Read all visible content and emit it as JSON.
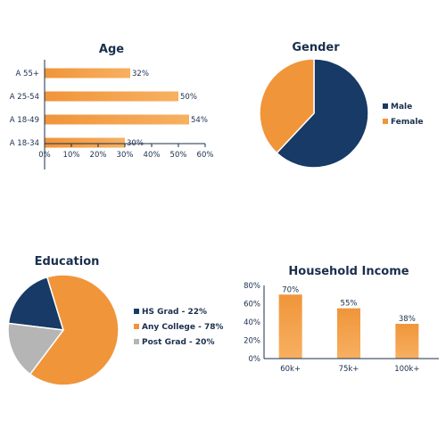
{
  "colors": {
    "orange": "#f0953a",
    "orange_light": "#f7b061",
    "navy": "#173a66",
    "gray": "#b5b5b5",
    "text": "#1a2f4d"
  },
  "chart_data": [
    {
      "id": "age",
      "type": "bar",
      "orientation": "horizontal",
      "title": "Age",
      "categories": [
        "A 55+",
        "A 25-54",
        "A 18-49",
        "A 18-34"
      ],
      "values": [
        32,
        50,
        54,
        30
      ],
      "value_labels": [
        "32%",
        "50%",
        "54%",
        "30%"
      ],
      "xlim": [
        0,
        60
      ],
      "ticks": [
        "0%",
        "10%",
        "20%",
        "30%",
        "40%",
        "50%",
        "60%"
      ],
      "grid": false
    },
    {
      "id": "gender",
      "type": "pie",
      "title": "Gender",
      "labels": [
        "Male",
        "Female"
      ],
      "values": [
        62,
        38
      ],
      "legend": "right"
    },
    {
      "id": "education",
      "type": "pie",
      "title": "Education",
      "labels": [
        "HS Grad - 22%",
        "Any College - 78%",
        "Post Grad - 20%"
      ],
      "values": [
        22,
        78,
        20
      ],
      "legend": "right"
    },
    {
      "id": "income",
      "type": "bar",
      "orientation": "vertical",
      "title": "Household Income",
      "categories": [
        "60k+",
        "75k+",
        "100k+"
      ],
      "values": [
        70,
        55,
        38
      ],
      "value_labels": [
        "70%",
        "55%",
        "38%"
      ],
      "ylim": [
        0,
        80
      ],
      "ticks": [
        "0%",
        "20%",
        "40%",
        "60%",
        "80%"
      ],
      "grid": false
    }
  ]
}
